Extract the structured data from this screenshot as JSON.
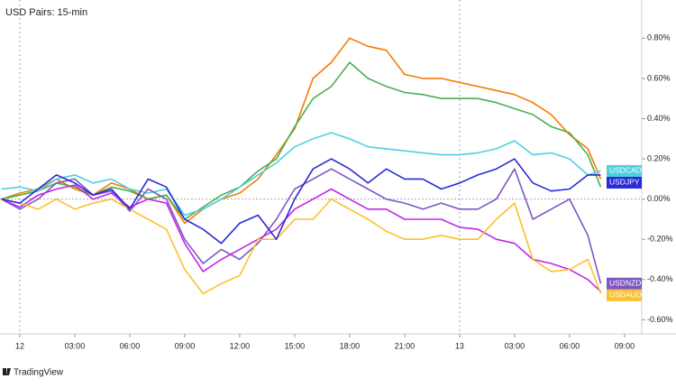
{
  "chart_data": {
    "type": "line",
    "title": "USD Pairs: 15-min",
    "source": "TradingView",
    "x": [
      -1,
      0,
      1,
      2,
      3,
      4,
      5,
      6,
      7,
      8,
      9,
      10,
      11,
      12,
      13,
      14,
      15,
      16,
      17,
      18,
      19,
      20,
      21,
      22,
      23,
      24,
      25,
      26,
      27,
      28,
      29,
      30,
      31,
      31.7
    ],
    "xlim": [
      -1.08,
      33.94
    ],
    "xticks": [
      {
        "value": 0,
        "label": "12"
      },
      {
        "value": 3,
        "label": "03:00"
      },
      {
        "value": 6,
        "label": "06:00"
      },
      {
        "value": 9,
        "label": "09:00"
      },
      {
        "value": 12,
        "label": "12:00"
      },
      {
        "value": 15,
        "label": "15:00"
      },
      {
        "value": 18,
        "label": "18:00"
      },
      {
        "value": 21,
        "label": "21:00"
      },
      {
        "value": 24,
        "label": "13"
      },
      {
        "value": 27,
        "label": "03:00"
      },
      {
        "value": 30,
        "label": "06:00"
      },
      {
        "value": 33,
        "label": "09:00"
      }
    ],
    "ylim": [
      -0.67,
      0.99
    ],
    "yticks": [
      {
        "value": 0.8,
        "label": "0.80%"
      },
      {
        "value": 0.6,
        "label": "0.60%"
      },
      {
        "value": 0.4,
        "label": "0.40%"
      },
      {
        "value": 0.2,
        "label": "0.20%"
      },
      {
        "value": 0,
        "label": "0.00%"
      },
      {
        "value": -0.2,
        "label": "-0.20%"
      },
      {
        "value": -0.4,
        "label": "-0.40%"
      },
      {
        "value": -0.6,
        "label": "-0.60%"
      }
    ],
    "series": [
      {
        "color": "#f57c00",
        "values": [
          0,
          0.03,
          0.05,
          0.1,
          0.05,
          0.02,
          0.08,
          0.05,
          0.0,
          0.02,
          -0.12,
          -0.05,
          0.0,
          0.03,
          0.1,
          0.22,
          0.35,
          0.6,
          0.68,
          0.8,
          0.76,
          0.74,
          0.62,
          0.6,
          0.6,
          0.58,
          0.56,
          0.54,
          0.52,
          0.48,
          0.42,
          0.32,
          0.25,
          0.1
        ]
      },
      {
        "color": "#4caf50",
        "values": [
          0,
          0.02,
          0.04,
          0.08,
          0.06,
          0.02,
          0.06,
          0.04,
          0.0,
          0.02,
          -0.1,
          -0.04,
          0.02,
          0.06,
          0.14,
          0.2,
          0.36,
          0.5,
          0.56,
          0.68,
          0.6,
          0.56,
          0.53,
          0.52,
          0.5,
          0.5,
          0.5,
          0.48,
          0.45,
          0.42,
          0.36,
          0.33,
          0.22,
          0.06
        ]
      },
      {
        "name": "USDCAD",
        "color": "#4dd0e1",
        "values": [
          0.05,
          0.06,
          0.04,
          0.1,
          0.12,
          0.08,
          0.1,
          0.05,
          0.03,
          0.05,
          -0.08,
          -0.05,
          0.0,
          0.06,
          0.12,
          0.18,
          0.26,
          0.3,
          0.33,
          0.3,
          0.26,
          0.25,
          0.24,
          0.23,
          0.22,
          0.22,
          0.23,
          0.25,
          0.29,
          0.22,
          0.23,
          0.2,
          0.12,
          0.14
        ]
      },
      {
        "name": "USDNZD",
        "color": "#7e57c2",
        "values": [
          0,
          -0.05,
          0.0,
          0.08,
          0.1,
          0.02,
          0.04,
          -0.06,
          0.05,
          0.0,
          -0.2,
          -0.32,
          -0.25,
          -0.3,
          -0.22,
          -0.1,
          0.05,
          0.1,
          0.15,
          0.1,
          0.05,
          0.0,
          -0.02,
          -0.05,
          -0.02,
          -0.05,
          -0.05,
          0.0,
          0.15,
          -0.1,
          -0.05,
          0.0,
          -0.18,
          -0.42
        ]
      },
      {
        "color": "#c026e8",
        "values": [
          0,
          -0.04,
          0.02,
          0.05,
          0.07,
          0.0,
          0.03,
          -0.04,
          0.0,
          -0.02,
          -0.22,
          -0.36,
          -0.3,
          -0.25,
          -0.2,
          -0.15,
          -0.05,
          0.0,
          0.05,
          0.0,
          -0.05,
          -0.05,
          -0.1,
          -0.1,
          -0.1,
          -0.14,
          -0.15,
          -0.2,
          -0.22,
          -0.3,
          -0.32,
          -0.35,
          -0.4,
          -0.46
        ]
      },
      {
        "name": "USDAUD",
        "color": "#fbc02d",
        "values": [
          0,
          -0.02,
          -0.05,
          0.0,
          -0.05,
          -0.02,
          0.0,
          -0.05,
          -0.1,
          -0.15,
          -0.35,
          -0.47,
          -0.42,
          -0.38,
          -0.2,
          -0.2,
          -0.1,
          -0.1,
          0.0,
          -0.05,
          -0.1,
          -0.16,
          -0.2,
          -0.2,
          -0.18,
          -0.2,
          -0.2,
          -0.1,
          -0.02,
          -0.3,
          -0.36,
          -0.35,
          -0.3,
          -0.47
        ]
      },
      {
        "name": "USDJPY",
        "color": "#2a2ad6",
        "values": [
          0.0,
          -0.02,
          0.05,
          0.12,
          0.08,
          0.02,
          0.05,
          -0.05,
          0.1,
          0.06,
          -0.1,
          -0.15,
          -0.22,
          -0.12,
          -0.08,
          -0.2,
          0.0,
          0.15,
          0.2,
          0.15,
          0.08,
          0.15,
          0.1,
          0.1,
          0.05,
          0.08,
          0.12,
          0.15,
          0.2,
          0.08,
          0.04,
          0.05,
          0.12,
          0.12
        ]
      }
    ]
  }
}
